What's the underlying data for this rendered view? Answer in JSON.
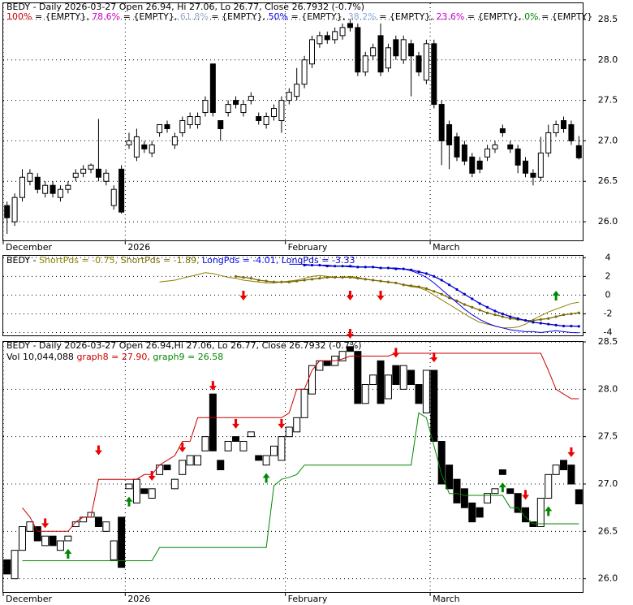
{
  "chart_data": [
    {
      "type": "candlestick",
      "title": "BEDY - Daily 2026-03-27 Open 26.94, Hi 27.06, Lo 26.77, Close 26.7932 (-0.7%)",
      "fib_levels": [
        {
          "name": "100%",
          "label": "= {EMPTY},",
          "color": "#cc0000"
        },
        {
          "name": "78.6%",
          "label": "= {EMPTY},",
          "color": "#cc00cc"
        },
        {
          "name": "61.8%",
          "label": "= {EMPTY},",
          "color": "#99aacc"
        },
        {
          "name": "50%",
          "label": "= {EMPTY},",
          "color": "#0000ee"
        },
        {
          "name": "38.2%",
          "label": "= {EMPTY},",
          "color": "#88aadd"
        },
        {
          "name": "23.6%",
          "label": "= {EMPTY},",
          "color": "#cc00cc"
        },
        {
          "name": "0%",
          "label": "= {EMPTY}",
          "color": "#008800"
        }
      ],
      "open": [
        26.2,
        26.0,
        26.3,
        26.5,
        26.55,
        26.35,
        26.45,
        26.3,
        26.4,
        26.55,
        26.6,
        26.65,
        26.65,
        26.5,
        26.2,
        26.65,
        26.95,
        26.8,
        26.95,
        26.85,
        27.1,
        27.2,
        26.95,
        27.1,
        27.2,
        27.2,
        27.35,
        27.95,
        27.25,
        27.35,
        27.5,
        27.35,
        27.5,
        27.3,
        27.2,
        27.3,
        27.25,
        27.5,
        27.55,
        27.7,
        27.95,
        28.2,
        28.3,
        28.25,
        28.3,
        28.45,
        28.4,
        27.85,
        28.05,
        28.3,
        27.9,
        28.25,
        28.0,
        28.2,
        28.05,
        27.75,
        28.2,
        27.45,
        27.2,
        27.05,
        26.95,
        26.8,
        26.75,
        26.8,
        26.9,
        27.15,
        26.95,
        26.9,
        26.75,
        26.6,
        26.55,
        26.85,
        27.1,
        27.25,
        27.2,
        26.94
      ],
      "high": [
        26.25,
        26.35,
        26.65,
        26.65,
        26.6,
        26.5,
        26.5,
        26.45,
        26.5,
        26.65,
        26.7,
        26.72,
        27.27,
        26.65,
        26.45,
        26.7,
        27.1,
        27.15,
        27.0,
        27.0,
        27.2,
        27.25,
        27.1,
        27.3,
        27.35,
        27.35,
        27.55,
        27.95,
        27.25,
        27.5,
        27.55,
        27.5,
        27.6,
        27.35,
        27.35,
        27.45,
        27.55,
        27.65,
        27.9,
        28.05,
        28.3,
        28.35,
        28.35,
        28.4,
        28.45,
        28.5,
        28.45,
        28.1,
        28.2,
        28.45,
        28.2,
        28.3,
        28.3,
        28.25,
        28.1,
        28.25,
        28.25,
        27.5,
        27.25,
        27.1,
        27.0,
        26.85,
        26.8,
        26.95,
        27.0,
        27.2,
        27.0,
        26.95,
        26.8,
        26.65,
        27.05,
        27.2,
        27.25,
        27.3,
        27.25,
        27.06
      ],
      "low": [
        25.85,
        25.95,
        26.25,
        26.45,
        26.35,
        26.3,
        26.3,
        26.25,
        26.35,
        26.5,
        26.55,
        26.6,
        26.5,
        26.45,
        26.15,
        26.1,
        26.9,
        26.75,
        26.85,
        26.8,
        27.05,
        27.1,
        26.9,
        27.05,
        27.15,
        27.15,
        27.3,
        27.3,
        27.0,
        27.3,
        27.4,
        27.3,
        27.45,
        27.2,
        27.15,
        27.25,
        27.1,
        27.45,
        27.5,
        27.65,
        27.9,
        28.15,
        28.2,
        28.2,
        28.25,
        28.35,
        27.8,
        27.8,
        28.0,
        27.8,
        27.85,
        28.0,
        27.95,
        27.55,
        27.8,
        27.7,
        27.4,
        26.7,
        26.65,
        26.75,
        26.7,
        26.55,
        26.6,
        26.75,
        26.85,
        27.05,
        26.85,
        26.6,
        26.55,
        26.45,
        26.5,
        26.8,
        27.05,
        27.1,
        26.95,
        26.77
      ],
      "close": [
        26.05,
        26.3,
        26.55,
        26.6,
        26.4,
        26.45,
        26.35,
        26.4,
        26.45,
        26.6,
        26.65,
        26.7,
        26.55,
        26.6,
        26.4,
        26.12,
        27.0,
        27.05,
        26.9,
        26.95,
        27.2,
        27.15,
        27.05,
        27.25,
        27.3,
        27.3,
        27.5,
        27.35,
        27.15,
        27.45,
        27.45,
        27.45,
        27.55,
        27.25,
        27.3,
        27.4,
        27.5,
        27.6,
        27.7,
        28.0,
        28.25,
        28.3,
        28.25,
        28.35,
        28.4,
        28.4,
        27.85,
        28.05,
        28.15,
        27.85,
        28.15,
        28.05,
        28.25,
        28.05,
        27.85,
        28.2,
        27.45,
        27.0,
        26.95,
        26.8,
        26.75,
        26.6,
        26.65,
        26.9,
        26.95,
        27.1,
        26.9,
        26.7,
        26.6,
        26.55,
        26.85,
        27.1,
        27.2,
        27.15,
        27.0,
        26.79
      ],
      "up_color": "#ffffff",
      "down_color": "#000000",
      "xlim": [
        0,
        76
      ],
      "xticks": [
        {
          "value": 0,
          "label": "December"
        },
        {
          "value": 16,
          "label": "2026"
        },
        {
          "value": 37,
          "label": "February"
        },
        {
          "value": 56,
          "label": "March"
        }
      ],
      "ylim": [
        25.77,
        28.7
      ],
      "yticks": [
        {
          "value": 26,
          "label": "26.0"
        },
        26.5,
        {
          "value": 27,
          "label": "27.0"
        },
        27.5,
        {
          "value": 28,
          "label": "28.0"
        },
        28.5
      ],
      "grid": true
    },
    {
      "type": "line",
      "legend_prefix": "BEDY -",
      "series": [
        {
          "name": "ShortPds",
          "value_label": "= -0.75,",
          "color": "#8b8000",
          "markers": false,
          "values": [
            null,
            null,
            null,
            null,
            null,
            null,
            null,
            null,
            null,
            null,
            null,
            null,
            null,
            null,
            null,
            null,
            null,
            null,
            null,
            null,
            1.4,
            1.5,
            1.6,
            1.8,
            2.0,
            2.2,
            2.4,
            2.3,
            2.1,
            1.9,
            1.8,
            1.6,
            1.5,
            1.4,
            1.3,
            1.3,
            1.4,
            1.5,
            1.6,
            1.8,
            2.0,
            2.1,
            2.0,
            1.9,
            1.9,
            2.0,
            1.9,
            1.7,
            1.6,
            1.5,
            1.4,
            1.3,
            1.1,
            0.9,
            0.8,
            0.5,
            0.0,
            -0.5,
            -1.0,
            -1.5,
            -2.0,
            -2.5,
            -2.9,
            -3.1,
            -3.3,
            -3.5,
            -3.5,
            -3.4,
            -3.1,
            -2.6,
            -2.2,
            -1.8,
            -1.5,
            -1.2,
            -0.9,
            -0.75
          ]
        },
        {
          "name": "ShortPds",
          "value_label": "= -1.89,",
          "color": "#7a6a00",
          "markers": true,
          "values": [
            null,
            null,
            null,
            null,
            null,
            null,
            null,
            null,
            null,
            null,
            null,
            null,
            null,
            null,
            null,
            null,
            null,
            null,
            null,
            null,
            null,
            null,
            null,
            null,
            null,
            null,
            null,
            null,
            null,
            null,
            2.0,
            1.9,
            1.8,
            1.6,
            1.5,
            1.4,
            1.4,
            1.4,
            1.5,
            1.6,
            1.7,
            1.8,
            1.9,
            1.9,
            1.9,
            1.9,
            1.8,
            1.7,
            1.6,
            1.5,
            1.4,
            1.3,
            1.1,
            1.0,
            0.9,
            0.7,
            0.4,
            0.1,
            -0.3,
            -0.6,
            -1.0,
            -1.3,
            -1.6,
            -1.9,
            -2.1,
            -2.3,
            -2.5,
            -2.6,
            -2.7,
            -2.7,
            -2.6,
            -2.5,
            -2.3,
            -2.1,
            -2.0,
            -1.89
          ]
        },
        {
          "name": "LongPds",
          "value_label": "= -4.01,",
          "color": "#0000ee",
          "markers": false,
          "values": [
            null,
            null,
            null,
            null,
            null,
            null,
            null,
            null,
            null,
            null,
            null,
            null,
            null,
            null,
            null,
            null,
            null,
            null,
            null,
            null,
            null,
            null,
            null,
            null,
            null,
            null,
            null,
            null,
            null,
            null,
            null,
            null,
            null,
            null,
            null,
            null,
            null,
            3.3,
            3.3,
            3.3,
            3.2,
            3.2,
            3.2,
            3.1,
            3.1,
            3.0,
            3.0,
            3.0,
            3.0,
            2.9,
            2.9,
            2.9,
            2.8,
            2.6,
            2.3,
            1.9,
            1.3,
            0.6,
            -0.1,
            -0.8,
            -1.5,
            -2.1,
            -2.6,
            -3.0,
            -3.3,
            -3.5,
            -3.7,
            -3.8,
            -3.9,
            -3.9,
            -4.0,
            -3.9,
            -3.8,
            -3.9,
            -4.0,
            -4.01
          ]
        },
        {
          "name": "LongPds",
          "value_label": "= -3.33",
          "color": "#0000cc",
          "markers": true,
          "values": [
            null,
            null,
            null,
            null,
            null,
            null,
            null,
            null,
            null,
            null,
            null,
            null,
            null,
            null,
            null,
            null,
            null,
            null,
            null,
            null,
            null,
            null,
            null,
            null,
            null,
            null,
            null,
            null,
            null,
            null,
            null,
            null,
            null,
            null,
            null,
            null,
            null,
            null,
            null,
            3.2,
            3.2,
            3.2,
            3.1,
            3.1,
            3.1,
            3.1,
            3.0,
            3.0,
            3.0,
            2.9,
            2.9,
            2.8,
            2.8,
            2.7,
            2.5,
            2.3,
            2.0,
            1.6,
            1.1,
            0.6,
            0.1,
            -0.4,
            -0.9,
            -1.3,
            -1.7,
            -2.0,
            -2.3,
            -2.5,
            -2.7,
            -2.9,
            -3.0,
            -3.1,
            -3.2,
            -3.3,
            -3.3,
            -3.33
          ]
        }
      ],
      "down_arrows": [
        31,
        45,
        49
      ],
      "up_arrows": [
        72
      ],
      "xlim": [
        0,
        76
      ],
      "ylim": [
        -4.3,
        4.2
      ],
      "yticks": [
        4,
        2,
        0,
        -2,
        -4
      ]
    },
    {
      "type": "line",
      "title": "BEDY - Daily 2026-03-27 Open 26.94,Hi 27.06, Lo 26.77, Close 26.7932 (-0.7%)",
      "volume_label": "Vol 10,044,088",
      "bars": true,
      "series": [
        {
          "name": "graph8",
          "value_label": "= 27.90,",
          "color": "#cc0000",
          "markers": false,
          "values": [
            null,
            null,
            26.75,
            26.65,
            26.5,
            26.5,
            26.5,
            26.5,
            26.5,
            26.6,
            26.65,
            26.65,
            27.05,
            27.05,
            27.05,
            27.05,
            27.05,
            27.05,
            27.1,
            27.1,
            27.2,
            27.25,
            27.3,
            27.45,
            27.45,
            27.7,
            27.7,
            27.7,
            27.7,
            27.7,
            27.7,
            27.7,
            27.7,
            27.7,
            27.7,
            27.7,
            27.7,
            27.75,
            28.0,
            28.0,
            28.2,
            28.3,
            28.3,
            28.3,
            28.32,
            28.35,
            28.35,
            28.35,
            28.35,
            28.35,
            28.35,
            28.38,
            28.38,
            28.38,
            28.38,
            28.38,
            28.38,
            28.38,
            28.38,
            28.38,
            28.38,
            28.38,
            28.38,
            28.38,
            28.38,
            28.38,
            28.38,
            28.38,
            28.38,
            28.38,
            28.38,
            28.2,
            28.0,
            27.95,
            27.9,
            27.9
          ]
        },
        {
          "name": "graph9",
          "value_label": "= 26.58",
          "color": "#008800",
          "markers": false,
          "values": [
            null,
            null,
            26.19,
            26.19,
            26.19,
            26.19,
            26.19,
            26.19,
            26.19,
            26.19,
            26.19,
            26.19,
            26.19,
            26.19,
            26.19,
            26.19,
            26.19,
            26.19,
            26.19,
            26.19,
            26.33,
            26.33,
            26.33,
            26.33,
            26.33,
            26.33,
            26.33,
            26.33,
            26.33,
            26.33,
            26.33,
            26.33,
            26.33,
            26.33,
            26.33,
            26.98,
            27.05,
            27.07,
            27.1,
            27.2,
            27.2,
            27.2,
            27.2,
            27.2,
            27.2,
            27.2,
            27.2,
            27.2,
            27.2,
            27.2,
            27.2,
            27.2,
            27.2,
            27.2,
            27.75,
            27.7,
            27.4,
            27.1,
            26.9,
            26.9,
            26.88,
            26.88,
            26.88,
            26.88,
            26.88,
            26.88,
            26.75,
            26.75,
            26.65,
            26.58,
            26.58,
            26.58,
            26.58,
            26.58,
            26.58,
            26.58
          ]
        }
      ],
      "down_arrows": [
        5,
        12,
        19,
        23,
        27,
        30,
        36,
        45,
        51,
        56,
        68,
        74
      ],
      "up_arrows": [
        8,
        16,
        34,
        65,
        71
      ],
      "xlim": [
        0,
        76
      ],
      "xticks": [
        {
          "value": 0,
          "label": "December"
        },
        {
          "value": 16,
          "label": "2026"
        },
        {
          "value": 37,
          "label": "February"
        },
        {
          "value": 56,
          "label": "March"
        }
      ],
      "ylim": [
        25.86,
        28.5
      ],
      "yticks": [
        {
          "value": 26,
          "label": "26.0"
        },
        26.5,
        {
          "value": 27,
          "label": "27.0"
        },
        27.5,
        {
          "value": 28,
          "label": "28.0"
        },
        28.5
      ],
      "grid": true
    }
  ]
}
